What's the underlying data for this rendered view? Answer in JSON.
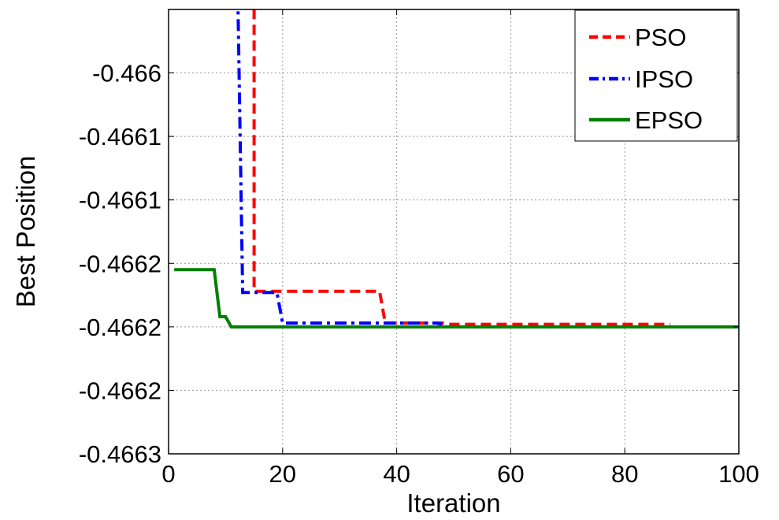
{
  "chart_data": {
    "type": "line",
    "title": "",
    "xlabel": "Iteration",
    "ylabel": "Best Position",
    "xlim": [
      0,
      100
    ],
    "ylim": [
      -0.4663,
      -0.46595
    ],
    "grid": true,
    "legend_position": "top-right",
    "x_ticks": [
      {
        "value": 0,
        "label": "0"
      },
      {
        "value": 20,
        "label": "20"
      },
      {
        "value": 40,
        "label": "40"
      },
      {
        "value": 60,
        "label": "60"
      },
      {
        "value": 80,
        "label": "80"
      },
      {
        "value": 100,
        "label": "100"
      }
    ],
    "y_ticks": [
      {
        "value": -0.466,
        "label": "-0.466"
      },
      {
        "value": -0.46605,
        "label": "-0.4661"
      },
      {
        "value": -0.4661,
        "label": "-0.4661"
      },
      {
        "value": -0.46615,
        "label": "-0.4662"
      },
      {
        "value": -0.4662,
        "label": "-0.4662"
      },
      {
        "value": -0.46625,
        "label": "-0.4662"
      },
      {
        "value": -0.4663,
        "label": "-0.4663"
      }
    ],
    "series": [
      {
        "name": "PSO",
        "color": "#ff0000",
        "style": "dashed",
        "points": [
          [
            15,
            -0.4659
          ],
          [
            15,
            -0.466172
          ],
          [
            37,
            -0.466172
          ],
          [
            38,
            -0.466197
          ],
          [
            48,
            -0.466197
          ],
          [
            49,
            -0.466198
          ],
          [
            88,
            -0.466198
          ]
        ]
      },
      {
        "name": "IPSO",
        "color": "#0000ff",
        "style": "dashdot",
        "points": [
          [
            12,
            -0.4659
          ],
          [
            13,
            -0.466173
          ],
          [
            19,
            -0.466173
          ],
          [
            20,
            -0.466197
          ],
          [
            47,
            -0.466197
          ],
          [
            48,
            -0.466198
          ]
        ]
      },
      {
        "name": "EPSO",
        "color": "#007f00",
        "style": "solid",
        "points": [
          [
            1,
            -0.466155
          ],
          [
            8,
            -0.466155
          ],
          [
            9,
            -0.466192
          ],
          [
            10,
            -0.466192
          ],
          [
            11,
            -0.4662
          ],
          [
            100,
            -0.4662
          ]
        ]
      }
    ]
  }
}
